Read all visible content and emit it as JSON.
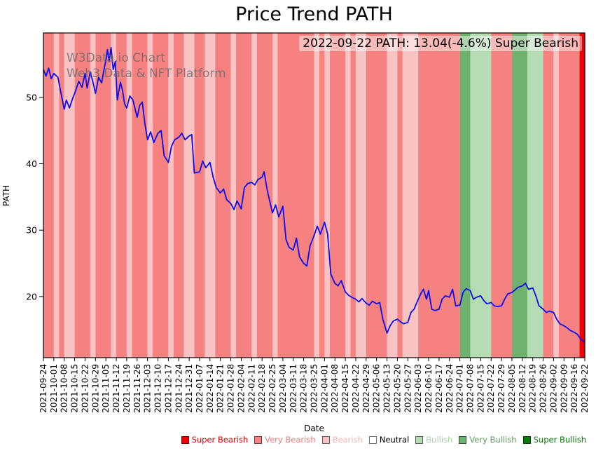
{
  "title": "Price Trend PATH",
  "watermark": {
    "line1": "W3Data.io Chart",
    "line2": "Web3 Data & NFT Platform"
  },
  "annotation": "2022-09-22 PATH: 13.04(-4.6%) Super Bearish",
  "chart_data": {
    "type": "line",
    "title": "Price Trend PATH",
    "xlabel": "Date",
    "ylabel": "PATH",
    "ylim": [
      10.8,
      59.7
    ],
    "yticks": [
      20,
      30,
      40,
      50
    ],
    "grid": false,
    "legend_position": "bottom",
    "x_tick_labels": [
      "2021-09-24",
      "2021-10-01",
      "2021-10-08",
      "2021-10-15",
      "2021-10-22",
      "2021-10-29",
      "2021-11-05",
      "2021-11-12",
      "2021-11-19",
      "2021-11-26",
      "2021-12-03",
      "2021-12-10",
      "2021-12-17",
      "2021-12-24",
      "2021-12-31",
      "2022-01-07",
      "2022-01-14",
      "2022-01-21",
      "2022-01-28",
      "2022-02-04",
      "2022-02-11",
      "2022-02-18",
      "2022-02-25",
      "2022-03-04",
      "2022-03-11",
      "2022-03-18",
      "2022-03-25",
      "2022-04-01",
      "2022-04-08",
      "2022-04-15",
      "2022-04-22",
      "2022-04-29",
      "2022-05-06",
      "2022-05-13",
      "2022-05-20",
      "2022-05-27",
      "2022-06-03",
      "2022-06-10",
      "2022-06-17",
      "2022-06-24",
      "2022-07-01",
      "2022-07-08",
      "2022-07-15",
      "2022-07-22",
      "2022-07-29",
      "2022-08-05",
      "2022-08-12",
      "2022-08-19",
      "2022-08-26",
      "2022-09-02",
      "2022-09-09",
      "2022-09-16",
      "2022-09-22"
    ],
    "last_point": {
      "date": "2022-09-22",
      "value": 13.04,
      "change_pct": -4.6,
      "sentiment": "Super Bearish"
    },
    "series": [
      {
        "name": "PATH",
        "color": "#0b0bef",
        "points": [
          [
            0,
            54.2
          ],
          [
            0.25,
            53.2
          ],
          [
            0.5,
            54.4
          ],
          [
            0.75,
            52.8
          ],
          [
            1,
            53.6
          ],
          [
            1.4,
            53.0
          ],
          [
            1.7,
            50.5
          ],
          [
            2,
            48.2
          ],
          [
            2.2,
            49.6
          ],
          [
            2.5,
            48.4
          ],
          [
            2.8,
            49.8
          ],
          [
            3,
            50.6
          ],
          [
            3.4,
            52.4
          ],
          [
            3.7,
            51.5
          ],
          [
            4,
            53.6
          ],
          [
            4.2,
            51.4
          ],
          [
            4.5,
            53.8
          ],
          [
            4.8,
            52.0
          ],
          [
            5,
            50.6
          ],
          [
            5.3,
            53.0
          ],
          [
            5.6,
            52.2
          ],
          [
            5.8,
            54.0
          ],
          [
            6,
            55.6
          ],
          [
            6.15,
            57.2
          ],
          [
            6.3,
            55.4
          ],
          [
            6.5,
            57.5
          ],
          [
            6.7,
            54.2
          ],
          [
            6.9,
            55.4
          ],
          [
            7.1,
            49.6
          ],
          [
            7.4,
            52.3
          ],
          [
            7.6,
            51.0
          ],
          [
            7.8,
            49.0
          ],
          [
            8,
            48.4
          ],
          [
            8.3,
            50.2
          ],
          [
            8.6,
            49.6
          ],
          [
            9,
            47.0
          ],
          [
            9.25,
            48.8
          ],
          [
            9.5,
            49.3
          ],
          [
            9.75,
            46.0
          ],
          [
            10,
            43.6
          ],
          [
            10.3,
            44.8
          ],
          [
            10.6,
            43.2
          ],
          [
            11,
            44.6
          ],
          [
            11.3,
            45.0
          ],
          [
            11.6,
            41.2
          ],
          [
            12,
            40.2
          ],
          [
            12.3,
            42.6
          ],
          [
            12.6,
            43.6
          ],
          [
            13,
            44.0
          ],
          [
            13.3,
            44.6
          ],
          [
            13.6,
            43.6
          ],
          [
            14,
            44.2
          ],
          [
            14.25,
            44.4
          ],
          [
            14.5,
            38.6
          ],
          [
            15,
            38.8
          ],
          [
            15.3,
            40.4
          ],
          [
            15.6,
            39.4
          ],
          [
            16,
            40.2
          ],
          [
            16.3,
            38.0
          ],
          [
            16.6,
            36.4
          ],
          [
            17,
            35.6
          ],
          [
            17.3,
            36.2
          ],
          [
            17.6,
            34.6
          ],
          [
            18,
            34.0
          ],
          [
            18.3,
            33.1
          ],
          [
            18.6,
            34.4
          ],
          [
            19,
            33.2
          ],
          [
            19.3,
            36.4
          ],
          [
            19.6,
            37.0
          ],
          [
            20,
            37.2
          ],
          [
            20.3,
            36.8
          ],
          [
            20.6,
            37.6
          ],
          [
            21,
            38.0
          ],
          [
            21.2,
            38.8
          ],
          [
            21.5,
            36.0
          ],
          [
            22,
            32.6
          ],
          [
            22.3,
            33.8
          ],
          [
            22.6,
            32.0
          ],
          [
            23,
            33.6
          ],
          [
            23.3,
            28.6
          ],
          [
            23.6,
            27.4
          ],
          [
            24,
            27.0
          ],
          [
            24.3,
            28.8
          ],
          [
            24.6,
            26.0
          ],
          [
            25,
            25.0
          ],
          [
            25.3,
            24.6
          ],
          [
            25.6,
            27.6
          ],
          [
            26,
            29.2
          ],
          [
            26.3,
            30.6
          ],
          [
            26.6,
            29.4
          ],
          [
            27,
            31.2
          ],
          [
            27.3,
            29.4
          ],
          [
            27.6,
            23.4
          ],
          [
            28,
            22.0
          ],
          [
            28.3,
            21.6
          ],
          [
            28.6,
            22.4
          ],
          [
            29,
            20.7
          ],
          [
            29.3,
            20.2
          ],
          [
            29.6,
            19.9
          ],
          [
            30,
            19.6
          ],
          [
            30.3,
            19.2
          ],
          [
            30.6,
            19.7
          ],
          [
            31,
            19.0
          ],
          [
            31.3,
            18.7
          ],
          [
            31.6,
            19.3
          ],
          [
            32,
            18.9
          ],
          [
            32.3,
            19.1
          ],
          [
            32.6,
            16.6
          ],
          [
            33,
            14.5
          ],
          [
            33.3,
            15.6
          ],
          [
            33.6,
            16.3
          ],
          [
            34,
            16.6
          ],
          [
            34.3,
            16.2
          ],
          [
            34.6,
            15.9
          ],
          [
            35,
            16.1
          ],
          [
            35.3,
            17.6
          ],
          [
            35.6,
            18.1
          ],
          [
            36,
            19.6
          ],
          [
            36.3,
            20.6
          ],
          [
            36.5,
            21.1
          ],
          [
            36.8,
            19.6
          ],
          [
            37,
            20.9
          ],
          [
            37.3,
            18.1
          ],
          [
            37.6,
            17.9
          ],
          [
            38,
            18.1
          ],
          [
            38.3,
            19.6
          ],
          [
            38.6,
            20.1
          ],
          [
            39,
            19.9
          ],
          [
            39.3,
            21.1
          ],
          [
            39.6,
            18.6
          ],
          [
            40,
            18.7
          ],
          [
            40.3,
            20.6
          ],
          [
            40.6,
            21.2
          ],
          [
            41,
            20.9
          ],
          [
            41.3,
            19.6
          ],
          [
            41.6,
            19.9
          ],
          [
            42,
            20.1
          ],
          [
            42.3,
            19.4
          ],
          [
            42.6,
            18.9
          ],
          [
            43,
            19.1
          ],
          [
            43.3,
            18.6
          ],
          [
            43.6,
            18.5
          ],
          [
            44,
            18.6
          ],
          [
            44.3,
            19.6
          ],
          [
            44.6,
            20.4
          ],
          [
            45,
            20.6
          ],
          [
            45.3,
            21.0
          ],
          [
            45.6,
            21.4
          ],
          [
            46,
            21.6
          ],
          [
            46.3,
            22.0
          ],
          [
            46.6,
            21.1
          ],
          [
            47,
            21.3
          ],
          [
            47.3,
            20.1
          ],
          [
            47.6,
            18.6
          ],
          [
            48,
            18.1
          ],
          [
            48.3,
            17.6
          ],
          [
            48.6,
            17.8
          ],
          [
            49,
            17.6
          ],
          [
            49.3,
            16.6
          ],
          [
            49.6,
            15.9
          ],
          [
            50,
            15.6
          ],
          [
            50.3,
            15.3
          ],
          [
            50.6,
            14.9
          ],
          [
            51,
            14.6
          ],
          [
            51.3,
            14.3
          ],
          [
            51.6,
            13.6
          ],
          [
            52,
            13.04
          ]
        ]
      }
    ],
    "sentiment_colors": {
      "super_bearish": "#f20000",
      "very_bearish": "#f58181",
      "bearish": "#fac3c3",
      "neutral": "#ffffff",
      "bullish": "#b5dcb5",
      "very_bullish": "#6eb26e",
      "super_bullish": "#0a7a0a"
    },
    "background_bands": [
      {
        "from": 0,
        "to": 1,
        "s": "very_bearish"
      },
      {
        "from": 1,
        "to": 1.5,
        "s": "bearish"
      },
      {
        "from": 1.5,
        "to": 2,
        "s": "very_bearish"
      },
      {
        "from": 2,
        "to": 3,
        "s": "bearish"
      },
      {
        "from": 3,
        "to": 4.5,
        "s": "very_bearish"
      },
      {
        "from": 4.5,
        "to": 5,
        "s": "bearish"
      },
      {
        "from": 5,
        "to": 6.5,
        "s": "very_bearish"
      },
      {
        "from": 6.5,
        "to": 7,
        "s": "bearish"
      },
      {
        "from": 7,
        "to": 8,
        "s": "very_bearish"
      },
      {
        "from": 8,
        "to": 8.5,
        "s": "bearish"
      },
      {
        "from": 8.5,
        "to": 10,
        "s": "very_bearish"
      },
      {
        "from": 10,
        "to": 10.5,
        "s": "bearish"
      },
      {
        "from": 10.5,
        "to": 12,
        "s": "very_bearish"
      },
      {
        "from": 12,
        "to": 12.5,
        "s": "bearish"
      },
      {
        "from": 12.5,
        "to": 13.5,
        "s": "very_bearish"
      },
      {
        "from": 13.5,
        "to": 14.5,
        "s": "bearish"
      },
      {
        "from": 14.5,
        "to": 15.5,
        "s": "very_bearish"
      },
      {
        "from": 15.5,
        "to": 16.5,
        "s": "bearish"
      },
      {
        "from": 16.5,
        "to": 18,
        "s": "very_bearish"
      },
      {
        "from": 18,
        "to": 18.5,
        "s": "bearish"
      },
      {
        "from": 18.5,
        "to": 20,
        "s": "very_bearish"
      },
      {
        "from": 20,
        "to": 20.5,
        "s": "bearish"
      },
      {
        "from": 20.5,
        "to": 22,
        "s": "very_bearish"
      },
      {
        "from": 22,
        "to": 22.5,
        "s": "bearish"
      },
      {
        "from": 22.5,
        "to": 26,
        "s": "very_bearish"
      },
      {
        "from": 26,
        "to": 26.5,
        "s": "bearish"
      },
      {
        "from": 26.5,
        "to": 27,
        "s": "very_bearish"
      },
      {
        "from": 27,
        "to": 27.5,
        "s": "bearish"
      },
      {
        "from": 27.5,
        "to": 29,
        "s": "very_bearish"
      },
      {
        "from": 29,
        "to": 29.5,
        "s": "bearish"
      },
      {
        "from": 29.5,
        "to": 30,
        "s": "very_bearish"
      },
      {
        "from": 30,
        "to": 31,
        "s": "bearish"
      },
      {
        "from": 31,
        "to": 33,
        "s": "very_bearish"
      },
      {
        "from": 33,
        "to": 34,
        "s": "bearish"
      },
      {
        "from": 34,
        "to": 34.5,
        "s": "very_bearish"
      },
      {
        "from": 34.5,
        "to": 36,
        "s": "bearish"
      },
      {
        "from": 36,
        "to": 40,
        "s": "very_bearish"
      },
      {
        "from": 40,
        "to": 41,
        "s": "very_bullish"
      },
      {
        "from": 41,
        "to": 43,
        "s": "bullish"
      },
      {
        "from": 43,
        "to": 45,
        "s": "very_bearish"
      },
      {
        "from": 45,
        "to": 46.5,
        "s": "very_bullish"
      },
      {
        "from": 46.5,
        "to": 48,
        "s": "bullish"
      },
      {
        "from": 48,
        "to": 49,
        "s": "very_bearish"
      },
      {
        "from": 49,
        "to": 49.5,
        "s": "bearish"
      },
      {
        "from": 49.5,
        "to": 51.5,
        "s": "very_bearish"
      },
      {
        "from": 51.5,
        "to": 52,
        "s": "super_bearish"
      }
    ],
    "legend": [
      {
        "key": "super_bearish",
        "label": "Super Bearish",
        "text_color": "#e00000"
      },
      {
        "key": "very_bearish",
        "label": "Very Bearish",
        "text_color": "#f07b7b"
      },
      {
        "key": "bearish",
        "label": "Bearish",
        "text_color": "#f5b5b5"
      },
      {
        "key": "neutral",
        "label": "Neutral",
        "text_color": "#000000"
      },
      {
        "key": "bullish",
        "label": "Bullish",
        "text_color": "#a8d4a8"
      },
      {
        "key": "very_bullish",
        "label": "Very Bullish",
        "text_color": "#5aa05a"
      },
      {
        "key": "super_bullish",
        "label": "Super Bullish",
        "text_color": "#067a06"
      }
    ]
  }
}
